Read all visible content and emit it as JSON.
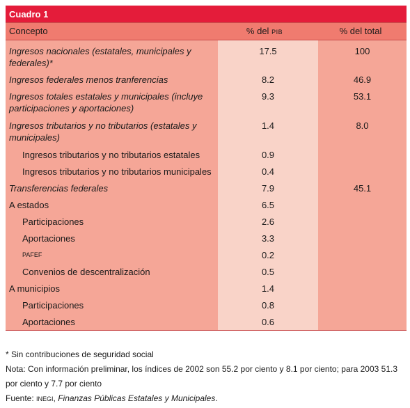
{
  "table": {
    "caption": "Cuadro 1",
    "headers": {
      "concept": "Concepto",
      "pib_prefix": "% del ",
      "pib_abbr": "PIB",
      "total": "% del total"
    },
    "rows": [
      {
        "concept": "Ingresos nacionales (estatales, municipales y federales)*",
        "pib": "17.5",
        "total": "100",
        "style": "italic"
      },
      {
        "concept": "Ingresos federales menos tranferencias",
        "pib": "8.2",
        "total": "46.9",
        "style": "italic"
      },
      {
        "concept": "Ingresos totales estatales y municipales (incluye participaciones y aportaciones)",
        "pib": "9.3",
        "total": "53.1",
        "style": "italic"
      },
      {
        "concept": "Ingresos tributarios y no tributarios (estatales y municipales)",
        "pib": "1.4",
        "total": "8.0",
        "style": "italic"
      },
      {
        "concept": "Ingresos tributarios y no tributarios estatales",
        "pib": "0.9",
        "total": "",
        "style": "indent"
      },
      {
        "concept": "Ingresos tributarios y no tributarios municipales",
        "pib": "0.4",
        "total": "",
        "style": "indent"
      },
      {
        "concept": "Transferencias federales",
        "pib": "7.9",
        "total": "45.1",
        "style": "italic"
      },
      {
        "concept": "A estados",
        "pib": "6.5",
        "total": "",
        "style": "plain"
      },
      {
        "concept": "Participaciones",
        "pib": "2.6",
        "total": "",
        "style": "indent"
      },
      {
        "concept": "Aportaciones",
        "pib": "3.3",
        "total": "",
        "style": "indent"
      },
      {
        "concept": "PAFEF",
        "pib": "0.2",
        "total": "",
        "style": "indent-sc"
      },
      {
        "concept": "Convenios de descentralización",
        "pib": "0.5",
        "total": "",
        "style": "indent"
      },
      {
        "concept": "A municipios",
        "pib": "1.4",
        "total": "",
        "style": "plain"
      },
      {
        "concept": "Participaciones",
        "pib": "0.8",
        "total": "",
        "style": "indent"
      },
      {
        "concept": "Aportaciones",
        "pib": "0.6",
        "total": "",
        "style": "indent"
      }
    ]
  },
  "notes": {
    "asterisk": "* Sin contribuciones de seguridad social",
    "nota": "Nota: Con información preliminar, los índices de 2002 son 55.2 por ciento y 8.1 por ciento; para 2003 51.3 por ciento y 7.7 por ciento",
    "fuente_label": "Fuente: ",
    "fuente_org": "INEGI",
    "fuente_sep": ", ",
    "fuente_title": "Finanzas Públicas Estatales y Municipales",
    "fuente_end": "."
  }
}
